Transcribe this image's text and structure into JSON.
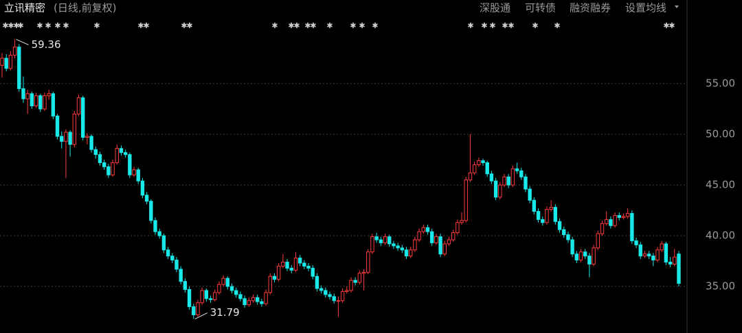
{
  "header": {
    "title": "立讯精密",
    "subtitle": "(日线,前复权)"
  },
  "toolbar": [
    "深股通",
    "可转债",
    "融资融券",
    "设置均线"
  ],
  "chart_data": {
    "type": "candlestick",
    "up_color": "#ff3b3b",
    "down_color": "#19e8e8",
    "ylim": [
      30.41,
      63.24
    ],
    "yticks": [
      {
        "value": 35,
        "label": "35.00"
      },
      {
        "value": 40,
        "label": "40.00"
      },
      {
        "value": 45,
        "label": "45.00"
      },
      {
        "value": 50,
        "label": "50.00"
      },
      {
        "value": 55,
        "label": "55.00"
      }
    ],
    "grid": true,
    "ohlc": [
      [
        56.8,
        58.0,
        55.6,
        57.5
      ],
      [
        57.5,
        57.9,
        56.2,
        56.5
      ],
      [
        56.5,
        58.2,
        56.3,
        57.8
      ],
      [
        57.8,
        59.36,
        57.5,
        58.6
      ],
      [
        58.6,
        58.9,
        54.2,
        54.5
      ],
      [
        54.5,
        55.7,
        53.1,
        53.5
      ],
      [
        53.5,
        54.4,
        52.0,
        54.0
      ],
      [
        54.0,
        54.2,
        52.5,
        52.8
      ],
      [
        52.8,
        54.1,
        52.6,
        53.8
      ],
      [
        53.8,
        54.0,
        52.2,
        52.5
      ],
      [
        52.5,
        54.1,
        52.3,
        53.8
      ],
      [
        53.8,
        54.4,
        53.4,
        54.0
      ],
      [
        54.0,
        54.2,
        51.5,
        51.8
      ],
      [
        51.8,
        52.0,
        49.5,
        49.8
      ],
      [
        49.8,
        50.3,
        48.6,
        49.3
      ],
      [
        49.3,
        50.5,
        45.7,
        50.2
      ],
      [
        50.2,
        50.4,
        47.8,
        49.0
      ],
      [
        49.0,
        52.3,
        48.7,
        52.0
      ],
      [
        52.0,
        53.9,
        51.8,
        53.6
      ],
      [
        53.6,
        53.8,
        49.4,
        49.7
      ],
      [
        49.7,
        50.1,
        49.0,
        49.8
      ],
      [
        49.8,
        50.0,
        48.2,
        48.5
      ],
      [
        48.5,
        48.8,
        47.6,
        48.0
      ],
      [
        48.0,
        48.3,
        46.9,
        47.2
      ],
      [
        47.2,
        47.5,
        46.5,
        46.8
      ],
      [
        46.8,
        47.1,
        45.7,
        46.0
      ],
      [
        46.0,
        47.5,
        45.8,
        47.2
      ],
      [
        47.2,
        49.0,
        47.0,
        48.6
      ],
      [
        48.6,
        48.9,
        47.9,
        48.2
      ],
      [
        48.2,
        48.5,
        47.7,
        48.0
      ],
      [
        48.0,
        48.2,
        45.7,
        46.0
      ],
      [
        46.0,
        46.8,
        45.8,
        46.5
      ],
      [
        46.5,
        46.7,
        45.1,
        45.4
      ],
      [
        45.4,
        45.7,
        43.7,
        44.0
      ],
      [
        44.0,
        44.3,
        43.1,
        43.4
      ],
      [
        43.4,
        43.6,
        41.2,
        41.5
      ],
      [
        41.5,
        41.8,
        40.1,
        40.4
      ],
      [
        40.4,
        40.7,
        39.7,
        40.0
      ],
      [
        40.0,
        40.2,
        38.3,
        38.6
      ],
      [
        38.6,
        38.9,
        37.7,
        38.0
      ],
      [
        38.0,
        38.3,
        37.3,
        37.6
      ],
      [
        37.6,
        37.9,
        36.4,
        36.7
      ],
      [
        36.7,
        37.0,
        35.2,
        35.5
      ],
      [
        35.5,
        35.8,
        34.4,
        34.7
      ],
      [
        34.7,
        35.0,
        32.7,
        33.0
      ],
      [
        33.0,
        33.3,
        31.79,
        32.2
      ],
      [
        32.2,
        33.7,
        32.0,
        33.4
      ],
      [
        33.4,
        34.9,
        33.2,
        34.6
      ],
      [
        34.6,
        34.8,
        33.5,
        33.8
      ],
      [
        33.8,
        34.1,
        33.4,
        33.7
      ],
      [
        33.7,
        34.7,
        33.5,
        34.4
      ],
      [
        34.4,
        35.5,
        34.2,
        35.2
      ],
      [
        35.2,
        36.1,
        35.0,
        35.8
      ],
      [
        35.8,
        36.0,
        34.7,
        35.0
      ],
      [
        35.0,
        35.3,
        34.3,
        34.6
      ],
      [
        34.6,
        34.9,
        33.9,
        34.2
      ],
      [
        34.2,
        34.5,
        33.5,
        33.8
      ],
      [
        33.8,
        34.1,
        32.9,
        33.2
      ],
      [
        33.2,
        33.9,
        33.0,
        33.6
      ],
      [
        33.6,
        34.2,
        33.4,
        33.9
      ],
      [
        33.9,
        34.2,
        33.2,
        33.5
      ],
      [
        33.5,
        33.8,
        33.0,
        33.3
      ],
      [
        33.3,
        34.7,
        33.1,
        34.4
      ],
      [
        34.4,
        36.3,
        34.2,
        36.0
      ],
      [
        36.0,
        36.3,
        35.4,
        35.7
      ],
      [
        35.7,
        37.3,
        35.5,
        37.0
      ],
      [
        37.0,
        38.2,
        36.8,
        37.4
      ],
      [
        37.4,
        37.7,
        36.5,
        36.8
      ],
      [
        36.8,
        37.1,
        36.3,
        36.6
      ],
      [
        36.6,
        38.4,
        36.4,
        37.8
      ],
      [
        37.8,
        38.1,
        37.0,
        37.3
      ],
      [
        37.3,
        37.6,
        36.7,
        37.0
      ],
      [
        37.0,
        37.3,
        36.5,
        36.8
      ],
      [
        36.8,
        37.1,
        35.7,
        36.0
      ],
      [
        36.0,
        36.3,
        34.5,
        34.8
      ],
      [
        34.8,
        35.1,
        34.3,
        34.6
      ],
      [
        34.6,
        34.9,
        33.9,
        34.2
      ],
      [
        34.2,
        34.5,
        33.7,
        34.0
      ],
      [
        34.0,
        34.3,
        33.3,
        33.6
      ],
      [
        33.6,
        34.0,
        32.0,
        33.6
      ],
      [
        33.6,
        34.8,
        33.4,
        34.5
      ],
      [
        34.5,
        35.0,
        34.3,
        34.6
      ],
      [
        34.6,
        35.9,
        34.4,
        35.6
      ],
      [
        35.6,
        35.9,
        35.1,
        35.4
      ],
      [
        35.4,
        36.6,
        35.2,
        36.3
      ],
      [
        36.3,
        36.7,
        34.6,
        36.4
      ],
      [
        36.4,
        38.7,
        36.2,
        38.4
      ],
      [
        38.4,
        40.2,
        38.2,
        39.9
      ],
      [
        39.9,
        40.3,
        39.3,
        39.6
      ],
      [
        39.6,
        39.9,
        39.0,
        39.3
      ],
      [
        39.3,
        40.2,
        39.1,
        39.9
      ],
      [
        39.9,
        40.1,
        38.9,
        39.2
      ],
      [
        39.2,
        39.5,
        38.7,
        39.0
      ],
      [
        39.0,
        39.3,
        38.5,
        38.8
      ],
      [
        38.8,
        39.1,
        38.3,
        38.6
      ],
      [
        38.6,
        38.9,
        37.7,
        38.0
      ],
      [
        38.0,
        38.9,
        37.8,
        38.6
      ],
      [
        38.6,
        39.9,
        38.4,
        39.6
      ],
      [
        39.6,
        40.7,
        39.4,
        40.4
      ],
      [
        40.4,
        41.1,
        40.2,
        40.8
      ],
      [
        40.8,
        41.1,
        40.1,
        40.4
      ],
      [
        40.4,
        40.7,
        39.0,
        39.3
      ],
      [
        39.3,
        40.2,
        39.1,
        39.9
      ],
      [
        39.9,
        40.2,
        37.9,
        38.2
      ],
      [
        38.2,
        39.5,
        38.0,
        39.2
      ],
      [
        39.2,
        39.9,
        39.0,
        39.6
      ],
      [
        39.6,
        40.6,
        39.4,
        40.3
      ],
      [
        40.3,
        41.6,
        40.1,
        41.3
      ],
      [
        41.3,
        42.3,
        41.1,
        41.5
      ],
      [
        41.5,
        45.8,
        41.3,
        45.5
      ],
      [
        45.5,
        50.0,
        45.3,
        46.2
      ],
      [
        46.2,
        47.3,
        46.0,
        47.0
      ],
      [
        47.0,
        47.7,
        46.8,
        47.4
      ],
      [
        47.4,
        47.6,
        46.9,
        47.2
      ],
      [
        47.2,
        47.4,
        45.8,
        46.1
      ],
      [
        46.1,
        46.4,
        45.1,
        45.4
      ],
      [
        45.4,
        45.7,
        43.5,
        43.8
      ],
      [
        43.8,
        45.3,
        43.6,
        45.0
      ],
      [
        45.0,
        46.1,
        44.8,
        45.8
      ],
      [
        45.8,
        46.1,
        44.7,
        45.0
      ],
      [
        45.0,
        46.9,
        44.8,
        46.6
      ],
      [
        46.6,
        47.2,
        46.1,
        46.4
      ],
      [
        46.4,
        46.7,
        45.5,
        45.8
      ],
      [
        45.8,
        46.1,
        44.3,
        44.6
      ],
      [
        44.6,
        44.9,
        43.2,
        43.5
      ],
      [
        43.5,
        43.8,
        42.1,
        42.4
      ],
      [
        42.4,
        42.7,
        41.3,
        41.6
      ],
      [
        41.6,
        41.9,
        41.0,
        41.3
      ],
      [
        41.3,
        42.9,
        41.1,
        42.6
      ],
      [
        42.6,
        43.5,
        42.4,
        42.8
      ],
      [
        42.8,
        43.1,
        41.1,
        41.4
      ],
      [
        41.4,
        41.7,
        40.3,
        40.6
      ],
      [
        40.6,
        40.9,
        39.8,
        40.1
      ],
      [
        40.1,
        40.4,
        39.3,
        39.6
      ],
      [
        39.6,
        39.9,
        37.9,
        38.2
      ],
      [
        38.2,
        38.5,
        37.3,
        37.6
      ],
      [
        37.6,
        38.7,
        37.4,
        38.4
      ],
      [
        38.4,
        38.7,
        37.7,
        38.0
      ],
      [
        38.0,
        38.3,
        35.9,
        37.2
      ],
      [
        37.2,
        39.1,
        37.0,
        38.8
      ],
      [
        38.8,
        40.5,
        38.6,
        40.2
      ],
      [
        40.2,
        41.5,
        40.0,
        41.2
      ],
      [
        41.2,
        42.4,
        41.0,
        41.6
      ],
      [
        41.6,
        41.9,
        40.7,
        41.0
      ],
      [
        41.0,
        42.3,
        40.8,
        42.0
      ],
      [
        42.0,
        42.3,
        41.5,
        41.8
      ],
      [
        41.8,
        42.2,
        41.6,
        41.9
      ],
      [
        41.9,
        42.7,
        41.7,
        42.2
      ],
      [
        42.2,
        42.5,
        39.2,
        39.5
      ],
      [
        39.5,
        39.8,
        38.8,
        39.1
      ],
      [
        39.1,
        39.4,
        37.7,
        38.0
      ],
      [
        38.0,
        38.5,
        37.8,
        38.2
      ],
      [
        38.2,
        38.5,
        37.7,
        38.0
      ],
      [
        38.0,
        38.3,
        37.0,
        37.6
      ],
      [
        37.6,
        38.9,
        37.4,
        38.6
      ],
      [
        38.6,
        39.5,
        38.4,
        39.2
      ],
      [
        39.2,
        39.4,
        37.1,
        37.4
      ],
      [
        37.4,
        37.9,
        36.9,
        37.2
      ],
      [
        37.2,
        38.7,
        37.0,
        37.9
      ],
      [
        38.2,
        38.5,
        35.0,
        35.3
      ]
    ]
  }
}
